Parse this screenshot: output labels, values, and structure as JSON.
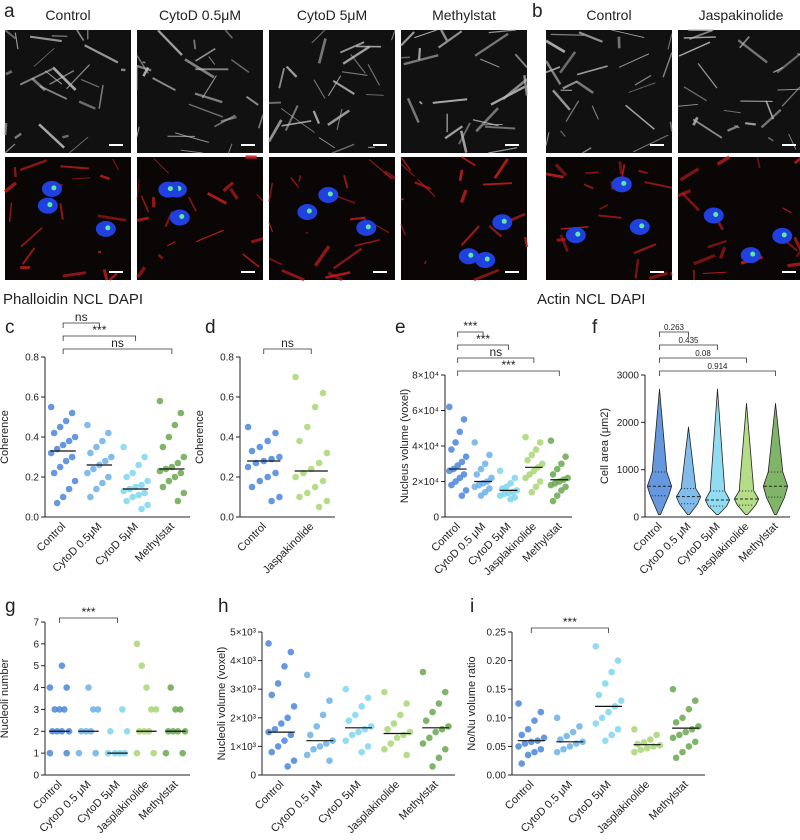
{
  "image_panels": [
    {
      "label": "a",
      "columns": [
        "Control",
        "CytoD 0.5μM",
        "CytoD 5μM",
        "Methylstat"
      ],
      "stain_legend": [
        {
          "text": "Phalloidin",
          "color": "#d7191c"
        },
        {
          "text": "NCL",
          "color": "#3ddc84"
        },
        {
          "text": "DAPI",
          "color": "#1f3fd6"
        }
      ]
    },
    {
      "label": "b",
      "columns": [
        "Control",
        "Jaspakinolide"
      ],
      "stain_legend": [
        {
          "text": "Actin",
          "color": "#d7191c"
        },
        {
          "text": "NCL",
          "color": "#3ddc84"
        },
        {
          "text": "DAPI",
          "color": "#1f3fd6"
        }
      ]
    }
  ],
  "chart_data": [
    {
      "type": "strip",
      "label": "c",
      "y_label": "Coherence",
      "categories": [
        "Control",
        "CytoD 0.5μM",
        "CytoD 5μM",
        "Methylstat"
      ],
      "colors": [
        "#4a86d8",
        "#6cb0e8",
        "#7fd6f0",
        "#6aa84f"
      ],
      "ylim": [
        0,
        0.8
      ],
      "yticks": [
        {
          "value": 0,
          "label": "0.0"
        },
        0.2,
        0.4,
        0.6,
        0.8
      ],
      "values": [
        [
          0.55,
          0.52,
          0.48,
          0.45,
          0.42,
          0.4,
          0.38,
          0.36,
          0.34,
          0.32,
          0.3,
          0.28,
          0.25,
          0.22,
          0.18,
          0.14,
          0.1,
          0.07
        ],
        [
          0.46,
          0.42,
          0.38,
          0.35,
          0.32,
          0.3,
          0.28,
          0.26,
          0.24,
          0.22,
          0.2,
          0.17,
          0.14,
          0.1
        ],
        [
          0.35,
          0.3,
          0.26,
          0.22,
          0.2,
          0.18,
          0.16,
          0.15,
          0.14,
          0.13,
          0.12,
          0.11,
          0.1,
          0.08,
          0.06,
          0.04
        ],
        [
          0.58,
          0.52,
          0.46,
          0.4,
          0.35,
          0.3,
          0.27,
          0.25,
          0.24,
          0.23,
          0.22,
          0.2,
          0.18,
          0.15,
          0.12,
          0.08
        ]
      ],
      "means": [
        0.33,
        0.26,
        0.14,
        0.24
      ],
      "brackets": [
        {
          "label": "ns",
          "from": "Control",
          "to": "CytoD 0.5μM"
        },
        {
          "label": "***",
          "from": "Control",
          "to": "CytoD 5μM"
        },
        {
          "label": "ns",
          "from": "Control",
          "to": "Methylstat"
        }
      ]
    },
    {
      "type": "strip",
      "label": "d",
      "y_label": "Coherence",
      "categories": [
        "Control",
        "Jaspakinolide"
      ],
      "colors": [
        "#4a86d8",
        "#a8d672"
      ],
      "ylim": [
        0,
        0.8
      ],
      "yticks": [
        {
          "value": 0,
          "label": "0.0"
        },
        0.2,
        0.4,
        0.6,
        0.8
      ],
      "values": [
        [
          0.45,
          0.42,
          0.38,
          0.35,
          0.33,
          0.3,
          0.29,
          0.28,
          0.27,
          0.25,
          0.22,
          0.2,
          0.18,
          0.15,
          0.1,
          0.08
        ],
        [
          0.7,
          0.62,
          0.55,
          0.45,
          0.38,
          0.32,
          0.27,
          0.24,
          0.22,
          0.2,
          0.18,
          0.15,
          0.12,
          0.1,
          0.08,
          0.05
        ]
      ],
      "means": [
        0.28,
        0.23
      ],
      "brackets": [
        {
          "label": "ns",
          "from": "Control",
          "to": "Jaspakinolide"
        }
      ]
    },
    {
      "type": "strip",
      "label": "e",
      "y_label": "Nucleus volume (voxel)",
      "categories": [
        "Control",
        "CytoD 0.5 μM",
        "CytoD 5μM",
        "Jasplakinolide",
        "Methylstat"
      ],
      "colors": [
        "#4a86d8",
        "#6cb0e8",
        "#7fd6f0",
        "#a8d672",
        "#6aa84f"
      ],
      "ylim": [
        0,
        80000
      ],
      "yticks": [
        0,
        {
          "value": 20000,
          "label": "2×10⁴"
        },
        {
          "value": 40000,
          "label": "4×10⁴"
        },
        {
          "value": 60000,
          "label": "6×10⁴"
        },
        {
          "value": 80000,
          "label": "8×10⁴"
        }
      ],
      "values": [
        [
          62000,
          55000,
          48000,
          42000,
          38000,
          34000,
          31000,
          29000,
          27000,
          26000,
          24000,
          22000,
          20000,
          18000,
          15000,
          12000
        ],
        [
          42000,
          35000,
          30000,
          27000,
          24000,
          22000,
          20000,
          19000,
          18000,
          17000,
          16000,
          14000,
          12000
        ],
        [
          26000,
          22000,
          19000,
          17000,
          16000,
          15000,
          14000,
          13500,
          13000,
          12000,
          11000,
          10000
        ],
        [
          45000,
          42000,
          38000,
          35000,
          32000,
          30000,
          28000,
          26000,
          24000,
          22000,
          20000,
          17000,
          14000
        ],
        [
          43000,
          34000,
          30000,
          27000,
          24000,
          22000,
          21000,
          20000,
          19000,
          18000,
          17000,
          15000,
          12000,
          9000
        ]
      ],
      "means": [
        27000,
        20000,
        15000,
        28000,
        21000
      ],
      "brackets": [
        {
          "label": "***",
          "from": "Control",
          "to": "CytoD 0.5 μM"
        },
        {
          "label": "***",
          "from": "Control",
          "to": "CytoD 5μM"
        },
        {
          "label": "ns",
          "from": "Control",
          "to": "Jasplakinolide"
        },
        {
          "label": "***",
          "from": "Control",
          "to": "Methylstat"
        }
      ]
    },
    {
      "type": "violin",
      "label": "f",
      "y_label": "Cell area (μm2)",
      "categories": [
        "Control",
        "CytoD 0.5 μM",
        "CytoD 5μM",
        "Jasplakinolide",
        "Methylstat"
      ],
      "colors": [
        "#4a86d8",
        "#6cb0e8",
        "#7fd6f0",
        "#a8d672",
        "#6aa84f"
      ],
      "ylim": [
        0,
        3000
      ],
      "yticks": [
        0,
        1000,
        2000,
        3000
      ],
      "stats": [
        {
          "min": 50,
          "q1": 450,
          "median": 650,
          "q3": 950,
          "max": 2700
        },
        {
          "min": 50,
          "q1": 280,
          "median": 430,
          "q3": 600,
          "max": 1900
        },
        {
          "min": 50,
          "q1": 230,
          "median": 360,
          "q3": 550,
          "max": 2700
        },
        {
          "min": 50,
          "q1": 250,
          "median": 380,
          "q3": 550,
          "max": 2400
        },
        {
          "min": 50,
          "q1": 420,
          "median": 650,
          "q3": 950,
          "max": 2400
        }
      ],
      "brackets": [
        {
          "label": "0.263",
          "from": "Control",
          "to": "CytoD 0.5 μM"
        },
        {
          "label": "0.435",
          "from": "Control",
          "to": "CytoD 5μM"
        },
        {
          "label": "0.08",
          "from": "Control",
          "to": "Jasplakinolide"
        },
        {
          "label": "0.914",
          "from": "Control",
          "to": "Methylstat"
        }
      ]
    },
    {
      "type": "strip",
      "label": "g",
      "y_label": "Nucleoli number",
      "categories": [
        "Control",
        "CytoD 0.5 μM",
        "CytoD 5μM",
        "Jasplakinolide",
        "Methylstat"
      ],
      "colors": [
        "#4a86d8",
        "#6cb0e8",
        "#7fd6f0",
        "#a8d672",
        "#6aa84f"
      ],
      "ylim": [
        0,
        7
      ],
      "yticks": [
        0,
        1,
        2,
        3,
        4,
        5,
        6,
        7
      ],
      "values": [
        [
          1,
          1,
          2,
          2,
          2,
          2,
          3,
          3,
          3,
          4,
          4,
          5
        ],
        [
          1,
          1,
          2,
          2,
          2,
          3,
          3,
          4
        ],
        [
          1,
          1,
          1,
          1,
          2,
          2,
          3
        ],
        [
          1,
          1,
          2,
          2,
          2,
          3,
          3,
          4,
          5,
          6
        ],
        [
          1,
          1,
          2,
          2,
          2,
          2,
          3,
          3,
          4
        ]
      ],
      "means": [
        2,
        2,
        1,
        2,
        2
      ],
      "brackets": [
        {
          "label": "***",
          "from": "Control",
          "to": "CytoD 5μM"
        }
      ]
    },
    {
      "type": "strip",
      "label": "h",
      "y_label": "Nucleoli volume (voxel)",
      "categories": [
        "Control",
        "CytoD 0.5 μM",
        "CytoD 5μM",
        "Jasplakinolide",
        "Methylstat"
      ],
      "colors": [
        "#4a86d8",
        "#6cb0e8",
        "#7fd6f0",
        "#a8d672",
        "#6aa84f"
      ],
      "ylim": [
        0,
        5000
      ],
      "yticks": [
        0,
        {
          "value": 1000,
          "label": "1×10³"
        },
        {
          "value": 2000,
          "label": "2×10³"
        },
        {
          "value": 3000,
          "label": "3×10³"
        },
        {
          "value": 4000,
          "label": "4×10³"
        },
        {
          "value": 5000,
          "label": "5×10³"
        }
      ],
      "values": [
        [
          4600,
          4300,
          3800,
          3200,
          2800,
          2400,
          2000,
          1800,
          1600,
          1500,
          1400,
          1200,
          1000,
          800,
          500,
          300
        ],
        [
          3500,
          2600,
          2100,
          1700,
          1400,
          1200,
          1100,
          1000,
          900,
          700,
          500
        ],
        [
          3000,
          2700,
          2400,
          2100,
          1900,
          1700,
          1600,
          1500,
          1400,
          1200,
          1000,
          800
        ],
        [
          2900,
          2500,
          2100,
          1800,
          1600,
          1500,
          1400,
          1300,
          1100,
          900,
          700
        ],
        [
          3600,
          2900,
          2500,
          2200,
          1900,
          1700,
          1600,
          1500,
          1300,
          1100,
          900,
          600,
          300
        ]
      ],
      "means": [
        1500,
        1200,
        1650,
        1450,
        1650
      ]
    },
    {
      "type": "strip",
      "label": "i",
      "y_label": "No/Nu volume ratio",
      "categories": [
        "Control",
        "CytoD 0.5 μM",
        "CytoD 5μM",
        "Jasplakinolide",
        "Methylstat"
      ],
      "colors": [
        "#4a86d8",
        "#6cb0e8",
        "#7fd6f0",
        "#a8d672",
        "#6aa84f"
      ],
      "ylim": [
        0,
        0.25
      ],
      "yticks": [
        {
          "value": 0,
          "label": "0.00"
        },
        {
          "value": 0.05,
          "label": "0.05"
        },
        {
          "value": 0.1,
          "label": "0.10"
        },
        {
          "value": 0.15,
          "label": "0.15"
        },
        {
          "value": 0.2,
          "label": "0.20"
        },
        {
          "value": 0.25,
          "label": "0.25"
        }
      ],
      "values": [
        [
          0.125,
          0.11,
          0.095,
          0.08,
          0.07,
          0.065,
          0.06,
          0.058,
          0.055,
          0.05,
          0.045,
          0.04,
          0.035,
          0.02
        ],
        [
          0.1,
          0.085,
          0.075,
          0.068,
          0.062,
          0.058,
          0.055,
          0.05,
          0.045,
          0.04
        ],
        [
          0.225,
          0.2,
          0.18,
          0.16,
          0.14,
          0.13,
          0.12,
          0.11,
          0.1,
          0.09,
          0.08,
          0.07,
          0.06
        ],
        [
          0.08,
          0.07,
          0.062,
          0.057,
          0.054,
          0.052,
          0.05,
          0.047,
          0.044,
          0.04
        ],
        [
          0.15,
          0.13,
          0.115,
          0.1,
          0.092,
          0.085,
          0.08,
          0.075,
          0.07,
          0.065,
          0.058,
          0.05,
          0.04,
          0.03
        ]
      ],
      "means": [
        0.06,
        0.058,
        0.12,
        0.053,
        0.082
      ],
      "brackets": [
        {
          "label": "***",
          "from": "Control",
          "to": "CytoD 5μM"
        }
      ]
    }
  ]
}
